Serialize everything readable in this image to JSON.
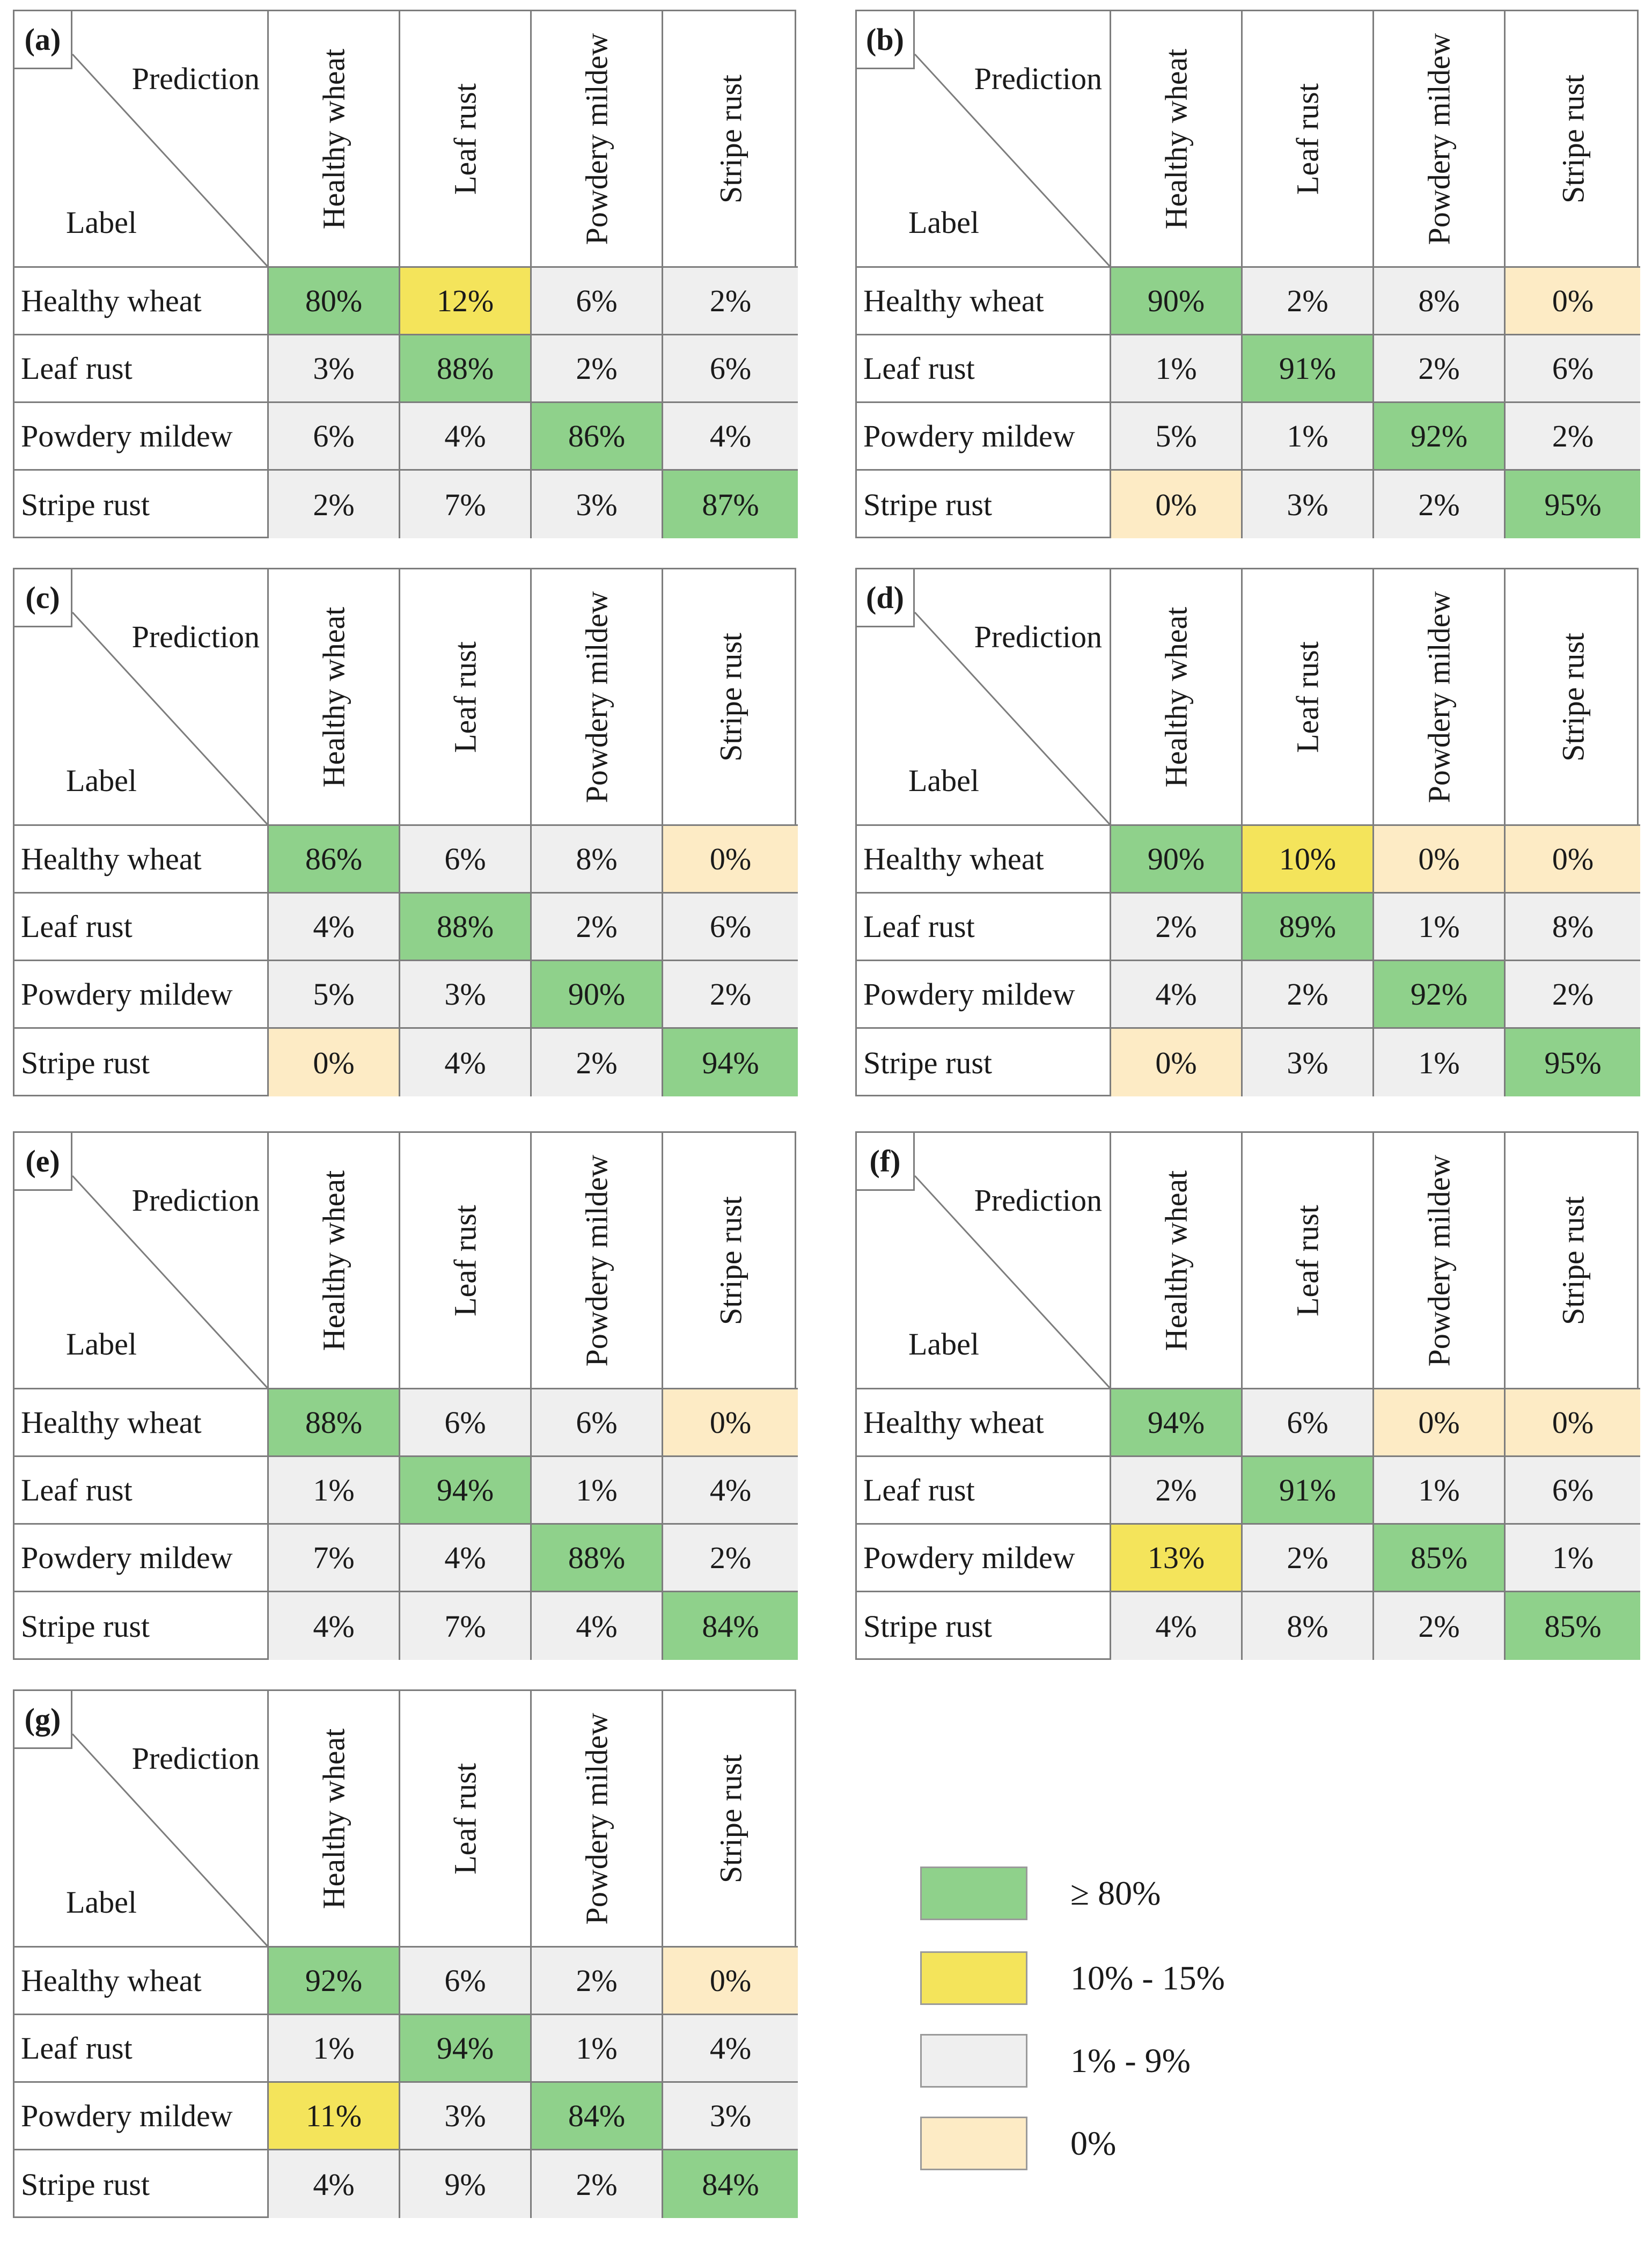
{
  "chart_data": {
    "type": "heatmap",
    "corner_labels": {
      "prediction": "Prediction",
      "label": "Label"
    },
    "column_headers": [
      "Healthy wheat",
      "Leaf rust",
      "Powdery mildew",
      "Stripe rust"
    ],
    "row_headers": [
      "Healthy wheat",
      "Leaf rust",
      "Powdery mildew",
      "Stripe rust"
    ],
    "panels": [
      {
        "label": "(a)",
        "matrix": [
          [
            "80%",
            "12%",
            "6%",
            "2%"
          ],
          [
            "3%",
            "88%",
            "2%",
            "6%"
          ],
          [
            "6%",
            "4%",
            "86%",
            "4%"
          ],
          [
            "2%",
            "7%",
            "3%",
            "87%"
          ]
        ]
      },
      {
        "label": "(b)",
        "matrix": [
          [
            "90%",
            "2%",
            "8%",
            "0%"
          ],
          [
            "1%",
            "91%",
            "2%",
            "6%"
          ],
          [
            "5%",
            "1%",
            "92%",
            "2%"
          ],
          [
            "0%",
            "3%",
            "2%",
            "95%"
          ]
        ]
      },
      {
        "label": "(c)",
        "matrix": [
          [
            "86%",
            "6%",
            "8%",
            "0%"
          ],
          [
            "4%",
            "88%",
            "2%",
            "6%"
          ],
          [
            "5%",
            "3%",
            "90%",
            "2%"
          ],
          [
            "0%",
            "4%",
            "2%",
            "94%"
          ]
        ]
      },
      {
        "label": "(d)",
        "matrix": [
          [
            "90%",
            "10%",
            "0%",
            "0%"
          ],
          [
            "2%",
            "89%",
            "1%",
            "8%"
          ],
          [
            "4%",
            "2%",
            "92%",
            "2%"
          ],
          [
            "0%",
            "3%",
            "1%",
            "95%"
          ]
        ]
      },
      {
        "label": "(e)",
        "matrix": [
          [
            "88%",
            "6%",
            "6%",
            "0%"
          ],
          [
            "1%",
            "94%",
            "1%",
            "4%"
          ],
          [
            "7%",
            "4%",
            "88%",
            "2%"
          ],
          [
            "4%",
            "7%",
            "4%",
            "84%"
          ]
        ]
      },
      {
        "label": "(f)",
        "matrix": [
          [
            "94%",
            "6%",
            "0%",
            "0%"
          ],
          [
            "2%",
            "91%",
            "1%",
            "6%"
          ],
          [
            "13%",
            "2%",
            "85%",
            "1%"
          ],
          [
            "4%",
            "8%",
            "2%",
            "85%"
          ]
        ]
      },
      {
        "label": "(g)",
        "matrix": [
          [
            "92%",
            "6%",
            "2%",
            "0%"
          ],
          [
            "1%",
            "94%",
            "1%",
            "4%"
          ],
          [
            "11%",
            "3%",
            "84%",
            "3%"
          ],
          [
            "4%",
            "9%",
            "2%",
            "84%"
          ]
        ]
      }
    ],
    "legend": [
      {
        "text": "≥ 80%",
        "color": "#8fd18b"
      },
      {
        "text": "10% - 15%",
        "color": "#f4e45b"
      },
      {
        "text": "1% - 9%",
        "color": "#efefef"
      },
      {
        "text": "0%",
        "color": "#fdebc5"
      }
    ]
  }
}
